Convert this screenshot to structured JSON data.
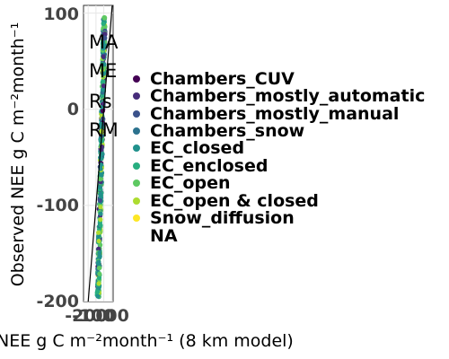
{
  "chart_data": {
    "type": "scatter",
    "xlabel": "NEE g C m⁻²month⁻¹ (8 km model)",
    "ylabel": "Observed NEE g C m⁻²month⁻¹",
    "x_ticks": [
      "-200",
      "-100",
      "0",
      "100"
    ],
    "y_ticks": [
      "-200",
      "-100",
      "0",
      "100"
    ],
    "xlim": [
      -260,
      120
    ],
    "ylim": [
      -200,
      108
    ],
    "grid": true,
    "legend_placement": "right",
    "metrics": [
      "MA",
      "ME",
      "Rs",
      "RM"
    ],
    "reference_line": "1:1",
    "series": [
      {
        "name": "Chambers_CUV",
        "color": "#440154"
      },
      {
        "name": "Chambers_mostly_automatic",
        "color": "#472d7b"
      },
      {
        "name": "Chambers_mostly_manual",
        "color": "#3b528b"
      },
      {
        "name": "Chambers_snow",
        "color": "#2c728e"
      },
      {
        "name": "EC_closed",
        "color": "#21918c"
      },
      {
        "name": "EC_enclosed",
        "color": "#28ae80"
      },
      {
        "name": "EC_open",
        "color": "#5ec962"
      },
      {
        "name": "EC_open & closed",
        "color": "#addc30"
      },
      {
        "name": "Snow_diffusion",
        "color": "#fde725"
      },
      {
        "name": "NA",
        "color": "#ffffff"
      }
    ]
  }
}
